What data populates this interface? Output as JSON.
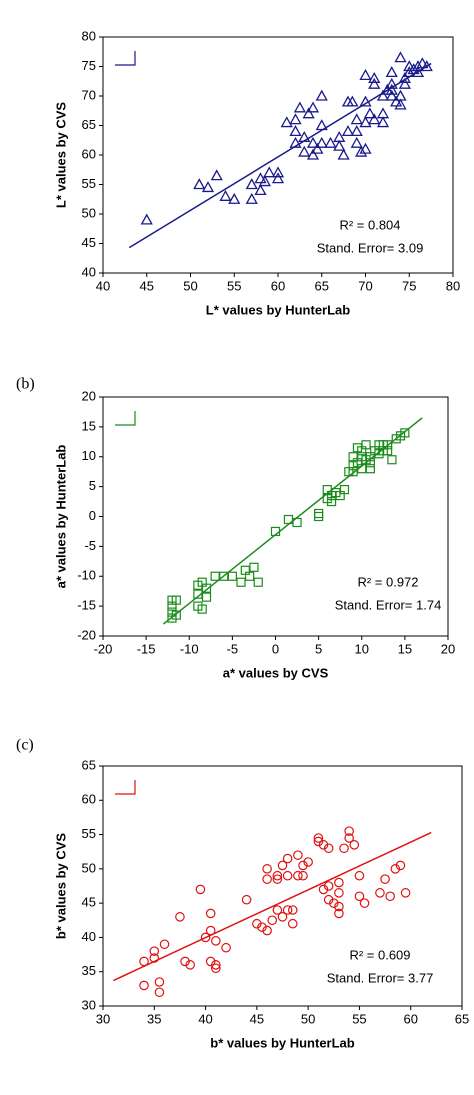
{
  "chart_data": [
    {
      "type": "scatter",
      "xlabel": "L* values by HunterLab",
      "ylabel": "L* values by CVS",
      "color": "#1a1a8c",
      "marker": "triangle",
      "x": [
        45,
        51,
        52,
        53,
        54,
        55,
        57,
        57,
        58,
        58,
        58.5,
        59,
        60,
        60,
        61,
        62,
        62,
        62,
        62.5,
        63,
        63,
        63.5,
        64,
        64,
        64,
        64.5,
        65,
        65,
        65,
        66,
        67,
        67,
        67.5,
        68,
        68,
        68.5,
        69,
        69,
        69,
        69.5,
        70,
        70,
        70,
        70,
        70.5,
        71,
        71,
        71,
        72,
        72,
        72,
        72.5,
        73,
        73,
        73,
        73,
        73.5,
        74,
        74,
        74,
        74.5,
        74.5,
        75,
        75,
        75.5,
        76,
        76,
        76.5,
        77
      ],
      "values": [
        49,
        55,
        54.5,
        56.5,
        53,
        52.5,
        52.5,
        55,
        54,
        56,
        55.5,
        57,
        57,
        56,
        65.5,
        66,
        62,
        64,
        68,
        60.5,
        63,
        67,
        62,
        60,
        68,
        61,
        65,
        70,
        62,
        62,
        63,
        61.5,
        60,
        64,
        69,
        69,
        66,
        62,
        64,
        60.5,
        61,
        65.5,
        73.5,
        69,
        67,
        66,
        72,
        73,
        65.5,
        67,
        70,
        71,
        71,
        70,
        74,
        72,
        69,
        70,
        68.5,
        76.5,
        73,
        72,
        74,
        75,
        74.5,
        75,
        74,
        75.5,
        75
      ],
      "xlim": [
        40,
        80
      ],
      "ylim": [
        40,
        80
      ],
      "xticks": [
        40,
        45,
        50,
        55,
        60,
        65,
        70,
        75,
        80
      ],
      "yticks": [
        40,
        45,
        50,
        55,
        60,
        65,
        70,
        75,
        80
      ],
      "trendline": {
        "x": [
          43,
          77.5
        ],
        "values": [
          44.3,
          75.5
        ]
      },
      "annotations": [
        "R² = 0.804",
        "Stand. Error= 3.09"
      ]
    },
    {
      "type": "scatter",
      "panel_label": "(b)",
      "xlabel": "a* values by CVS",
      "ylabel": "a* values by HunterLab",
      "color": "#1a8c1a",
      "marker": "square",
      "x": [
        -12,
        -12,
        -12,
        -12,
        -11.5,
        -11.5,
        -9,
        -9,
        -9,
        -8.5,
        -8.5,
        -8,
        -8,
        -7,
        -6,
        -5,
        -4,
        -3.5,
        -3,
        -2.5,
        -2,
        0,
        1.5,
        2.5,
        5,
        5,
        6,
        6,
        6.5,
        6.5,
        7,
        7.5,
        8,
        8.5,
        9,
        9,
        9,
        9.5,
        9.5,
        10,
        10,
        10,
        10.5,
        10.5,
        11,
        11,
        11,
        11.5,
        12,
        12,
        12.5,
        12.5,
        13,
        13,
        13.5,
        14,
        14.5,
        15
      ],
      "values": [
        -17,
        -16,
        -15,
        -14,
        -16.5,
        -14,
        -11.5,
        -13,
        -15,
        -15.5,
        -11,
        -13.5,
        -12,
        -10,
        -10,
        -10,
        -11,
        -9,
        -10,
        -8.5,
        -11,
        -2.5,
        -0.5,
        -1,
        0.5,
        0,
        3,
        4.5,
        3.5,
        2.5,
        4,
        3.5,
        4.5,
        7.5,
        8.5,
        7.5,
        10,
        11.5,
        9,
        11,
        10,
        8,
        9.5,
        12,
        10,
        9,
        8,
        11,
        10.5,
        12,
        11,
        12,
        12,
        11,
        9.5,
        13,
        13.5,
        14
      ],
      "xlim": [
        -20,
        20
      ],
      "ylim": [
        -20,
        20
      ],
      "xticks": [
        -20,
        -15,
        -10,
        -5,
        0,
        5,
        10,
        15,
        20
      ],
      "yticks": [
        -20,
        -15,
        -10,
        -5,
        0,
        5,
        10,
        15,
        20
      ],
      "trendline": {
        "x": [
          -13,
          17
        ],
        "values": [
          -18,
          16.5
        ]
      },
      "annotations": [
        "R² = 0.972",
        "Stand. Error= 1.74"
      ]
    },
    {
      "type": "scatter",
      "panel_label": "(c)",
      "xlabel": "b* values by HunterLab",
      "ylabel": "b* values by CVS",
      "color": "#e01010",
      "marker": "circle",
      "x": [
        34,
        34,
        35,
        35,
        35.5,
        35.5,
        36,
        37.5,
        38,
        38.5,
        39.5,
        40,
        40.5,
        40.5,
        40.5,
        41,
        41,
        41,
        42,
        44,
        45,
        45.5,
        46,
        46,
        46,
        46.5,
        47,
        47,
        47,
        47.5,
        47.5,
        48,
        48,
        48,
        48.5,
        48.5,
        49,
        49,
        49.5,
        49.5,
        50,
        51,
        51,
        51.5,
        51.5,
        52,
        52,
        52,
        52.5,
        53,
        53,
        53,
        53,
        53.5,
        54,
        54,
        54.5,
        55,
        55,
        55.5,
        57,
        57.5,
        58,
        58.5,
        59,
        59.5
      ],
      "values": [
        33,
        36.5,
        37,
        38,
        33.5,
        32,
        39,
        43,
        36.5,
        36,
        47,
        40,
        41,
        43.5,
        36.5,
        35.5,
        36,
        39.5,
        38.5,
        45.5,
        42,
        41.5,
        48.5,
        50,
        41,
        42.5,
        44,
        49,
        48.5,
        50.5,
        43,
        49,
        51.5,
        44,
        44,
        42,
        49,
        52,
        49,
        50.5,
        51,
        54.5,
        54,
        53.5,
        47,
        45.5,
        53,
        47.5,
        45,
        43.5,
        44.5,
        48,
        46.5,
        53,
        54.5,
        55.5,
        53.5,
        49,
        46,
        45,
        46.5,
        48.5,
        46,
        50,
        50.5,
        46.5
      ],
      "xlim": [
        30,
        65
      ],
      "ylim": [
        30,
        65
      ],
      "xticks": [
        30,
        35,
        40,
        45,
        50,
        55,
        60,
        65
      ],
      "yticks": [
        30,
        35,
        40,
        45,
        50,
        55,
        60,
        65
      ],
      "trendline": {
        "x": [
          31,
          62
        ],
        "values": [
          33.7,
          55.3
        ]
      },
      "annotations": [
        "R² = 0.609",
        "Stand. Error= 3.77"
      ]
    }
  ]
}
